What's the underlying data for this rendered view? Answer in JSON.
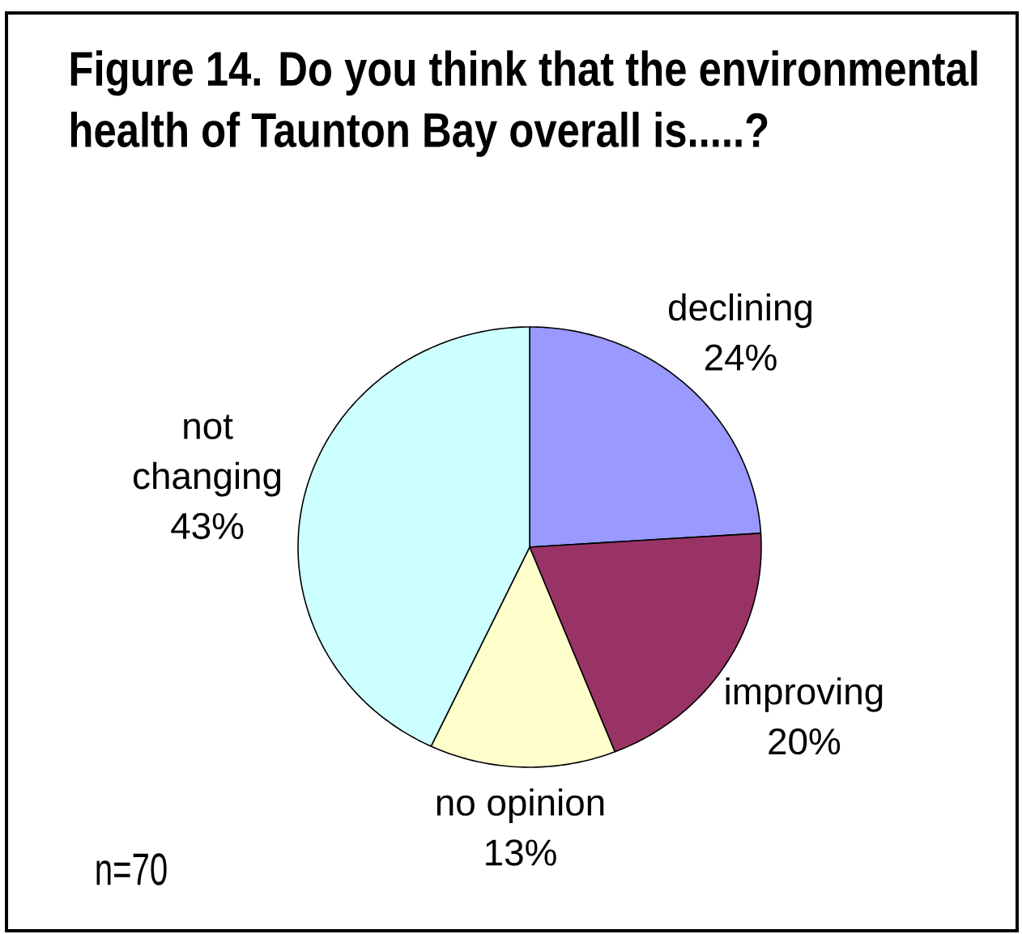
{
  "chart_data": {
    "type": "pie",
    "title": "Figure 14. Do you think that the environmental health of Taunton Bay overall is.....?",
    "categories": [
      "declining",
      "improving",
      "no opinion",
      "not changing"
    ],
    "values": [
      24,
      20,
      13,
      43
    ],
    "colors": [
      "#9999ff",
      "#993366",
      "#ffffcc",
      "#ccffff"
    ],
    "value_labels": [
      "24%",
      "20%",
      "13%",
      "43%"
    ],
    "annotations": [
      "n=70"
    ]
  }
}
